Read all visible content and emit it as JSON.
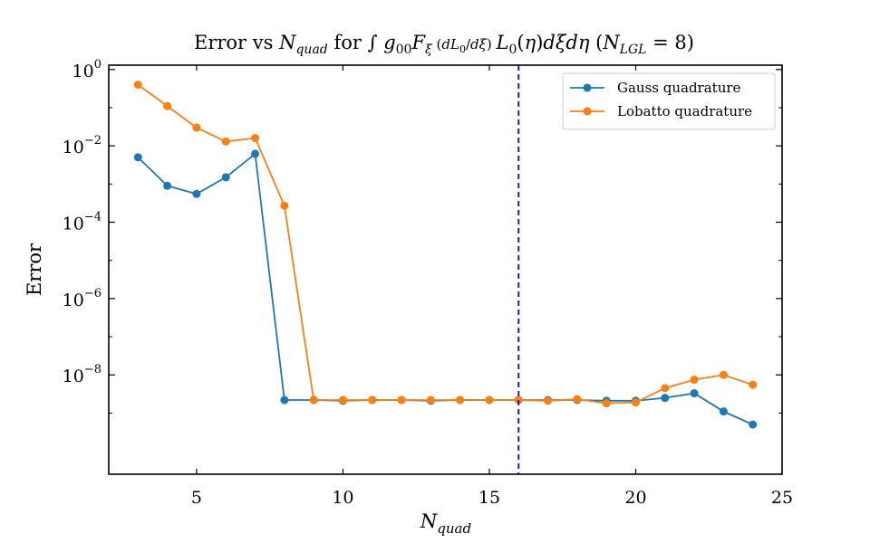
{
  "chart_data": {
    "type": "line",
    "title": "Error vs N_quad for ∫ g₀₀ F_ξ (dL₀/dξ) L₀(η) dξ dη (N_LGL = 8)",
    "xlabel": "N_quad",
    "ylabel": "Error",
    "yscale": "log",
    "xlim": [
      2,
      25
    ],
    "ylim": [
      2.5e-11,
      1.3
    ],
    "xticks": [
      5,
      10,
      15,
      20,
      25
    ],
    "yticks": [
      {
        "value": 1,
        "base": "10",
        "exp": "0"
      },
      {
        "value": 0.01,
        "base": "10",
        "exp": "−2"
      },
      {
        "value": 0.0001,
        "base": "10",
        "exp": "−4"
      },
      {
        "value": 1e-06,
        "base": "10",
        "exp": "−6"
      },
      {
        "value": 1e-08,
        "base": "10",
        "exp": "−8"
      }
    ],
    "grid": false,
    "legend_position": "top-right",
    "vline": {
      "x": 16,
      "color": "#0000ff",
      "style": "dashed"
    },
    "x": [
      3,
      4,
      5,
      6,
      7,
      8,
      9,
      10,
      11,
      12,
      13,
      14,
      15,
      16,
      17,
      18,
      19,
      20,
      21,
      22,
      23,
      24
    ],
    "series": [
      {
        "name": "Gauss quadrature",
        "color": "#1f77b4",
        "values": [
          0.005,
          0.0009,
          0.00055,
          0.0015,
          0.0062,
          2.2e-09,
          2.2e-09,
          2.1e-09,
          2.2e-09,
          2.2e-09,
          2.1e-09,
          2.2e-09,
          2.2e-09,
          2.2e-09,
          2.2e-09,
          2.2e-09,
          2.1e-09,
          2.1e-09,
          2.5e-09,
          3.3e-09,
          1.1e-09,
          5e-10
        ]
      },
      {
        "name": "Lobatto quadrature",
        "color": "#ff7f0e",
        "values": [
          0.4,
          0.11,
          0.03,
          0.013,
          0.016,
          0.00027,
          2.2e-09,
          2.2e-09,
          2.2e-09,
          2.2e-09,
          2.2e-09,
          2.2e-09,
          2.2e-09,
          2.2e-09,
          2.1e-09,
          2.3e-09,
          1.8e-09,
          1.9e-09,
          4.5e-09,
          7.5e-09,
          1e-08,
          5.5e-09
        ]
      }
    ]
  }
}
